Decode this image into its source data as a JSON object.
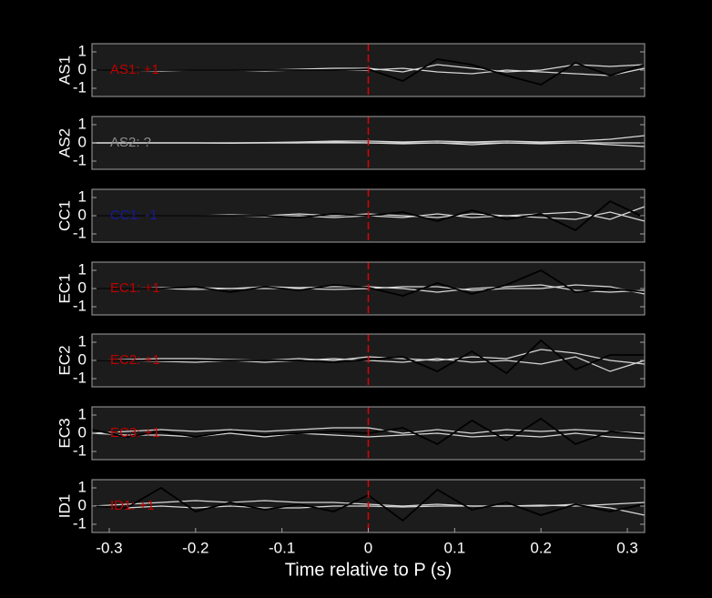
{
  "chart_data": [
    {
      "type": "line",
      "ylabel": "AS1",
      "annotation": {
        "text": "AS1: +1",
        "color": "#c00000"
      },
      "x": [
        -0.32,
        -0.28,
        -0.24,
        -0.2,
        -0.16,
        -0.12,
        -0.08,
        -0.04,
        0,
        0.04,
        0.08,
        0.12,
        0.16,
        0.2,
        0.24,
        0.28,
        0.32
      ],
      "series": [
        {
          "color": "#d8d8d8",
          "values": [
            0,
            0,
            0.02,
            0,
            0,
            0,
            0.05,
            0.1,
            0.1,
            -0.1,
            0.3,
            0.1,
            -0.1,
            0,
            0.3,
            0.2,
            0.3
          ]
        },
        {
          "color": "#d8d8d8",
          "values": [
            0,
            0,
            -0.05,
            0,
            0,
            -0.05,
            0,
            0,
            0,
            0.1,
            -0.1,
            -0.2,
            0,
            -0.1,
            -0.2,
            -0.3,
            0.1
          ]
        },
        {
          "color": "#000000",
          "values": [
            0,
            0,
            0,
            0,
            0,
            0,
            0,
            0,
            0.05,
            -0.6,
            0.6,
            0.3,
            -0.3,
            -0.8,
            0.4,
            -0.3,
            0.3
          ]
        }
      ],
      "xlim": [
        -0.32,
        0.32
      ],
      "ylim": [
        -1.45,
        1.45
      ],
      "yticks": [
        -1,
        0,
        1
      ],
      "vline": {
        "x": 0,
        "color": "#e00000"
      }
    },
    {
      "type": "line",
      "ylabel": "AS2",
      "annotation": {
        "text": "AS2: ?",
        "color": "#8c8c8c"
      },
      "x": [
        -0.32,
        -0.28,
        -0.24,
        -0.2,
        -0.16,
        -0.12,
        -0.08,
        -0.04,
        0,
        0.04,
        0.08,
        0.12,
        0.16,
        0.2,
        0.24,
        0.28,
        0.32
      ],
      "series": [
        {
          "color": "#d8d8d8",
          "values": [
            0,
            0,
            0,
            0,
            0,
            0.02,
            0.05,
            0.1,
            0.1,
            0.05,
            0.1,
            0.05,
            0.1,
            0.05,
            0.1,
            0.2,
            0.4
          ]
        },
        {
          "color": "#d8d8d8",
          "values": [
            0,
            0,
            0,
            0,
            -0.02,
            0,
            0,
            0.05,
            0,
            -0.05,
            0,
            -0.1,
            0,
            -0.05,
            0,
            -0.1,
            -0.2
          ]
        },
        {
          "color": "#d8d8d8",
          "values": [
            0,
            0,
            0,
            0,
            0,
            0,
            0,
            0,
            0,
            0,
            0,
            0,
            0,
            0,
            0,
            0,
            0
          ]
        }
      ],
      "xlim": [
        -0.32,
        0.32
      ],
      "ylim": [
        -1.45,
        1.45
      ],
      "yticks": [
        -1,
        0,
        1
      ],
      "vline": {
        "x": 0,
        "color": "#e00000"
      }
    },
    {
      "type": "line",
      "ylabel": "CC1",
      "annotation": {
        "text": "CC1: -1",
        "color": "#1818a0"
      },
      "x": [
        -0.32,
        -0.28,
        -0.24,
        -0.2,
        -0.16,
        -0.12,
        -0.08,
        -0.04,
        0,
        0.04,
        0.08,
        0.12,
        0.16,
        0.2,
        0.24,
        0.28,
        0.32
      ],
      "series": [
        {
          "color": "#d8d8d8",
          "values": [
            0,
            0,
            0,
            0,
            0.05,
            0,
            0.1,
            0,
            0.1,
            0,
            -0.1,
            0.1,
            0,
            0.1,
            0.2,
            -0.2,
            0.5
          ]
        },
        {
          "color": "#d8d8d8",
          "values": [
            0,
            0,
            0,
            0,
            0,
            -0.05,
            0,
            -0.1,
            0,
            -0.1,
            0.1,
            -0.1,
            0,
            -0.1,
            -0.2,
            0.2,
            -0.3
          ]
        },
        {
          "color": "#000000",
          "values": [
            0,
            0,
            0,
            0,
            0,
            0,
            -0.1,
            0.1,
            0,
            0.2,
            -0.3,
            0.3,
            -0.2,
            0.1,
            -0.8,
            0.8,
            -0.1
          ]
        }
      ],
      "xlim": [
        -0.32,
        0.32
      ],
      "ylim": [
        -1.45,
        1.45
      ],
      "yticks": [
        -1,
        0,
        1
      ],
      "vline": {
        "x": 0,
        "color": "#e00000"
      }
    },
    {
      "type": "line",
      "ylabel": "EC1",
      "annotation": {
        "text": "EC1: +1",
        "color": "#c00000"
      },
      "x": [
        -0.32,
        -0.28,
        -0.24,
        -0.2,
        -0.16,
        -0.12,
        -0.08,
        -0.04,
        0,
        0.04,
        0.08,
        0.12,
        0.16,
        0.2,
        0.24,
        0.28,
        0.32
      ],
      "series": [
        {
          "color": "#d8d8d8",
          "values": [
            0,
            0,
            0.05,
            0.05,
            0,
            0.1,
            0.05,
            0.1,
            0.1,
            0,
            -0.2,
            0,
            0.1,
            0.2,
            -0.1,
            -0.2,
            -0.1
          ]
        },
        {
          "color": "#d8d8d8",
          "values": [
            0,
            0,
            0,
            -0.05,
            0,
            0,
            0,
            -0.05,
            0,
            0.1,
            0.1,
            -0.1,
            0,
            0,
            0.2,
            0.1,
            -0.3
          ]
        },
        {
          "color": "#000000",
          "values": [
            0,
            0,
            0,
            0.1,
            -0.2,
            0.1,
            -0.1,
            0.2,
            0.05,
            -0.4,
            0.3,
            -0.3,
            0.2,
            1.0,
            -0.2,
            0,
            -0.2
          ]
        }
      ],
      "xlim": [
        -0.32,
        0.32
      ],
      "ylim": [
        -1.45,
        1.45
      ],
      "yticks": [
        -1,
        0,
        1
      ],
      "vline": {
        "x": 0,
        "color": "#e00000"
      }
    },
    {
      "type": "line",
      "ylabel": "EC2",
      "annotation": {
        "text": "EC2: +1",
        "color": "#c00000"
      },
      "x": [
        -0.32,
        -0.28,
        -0.24,
        -0.2,
        -0.16,
        -0.12,
        -0.08,
        -0.04,
        0,
        0.04,
        0.08,
        0.12,
        0.16,
        0.2,
        0.24,
        0.28,
        0.32
      ],
      "series": [
        {
          "color": "#d8d8d8",
          "values": [
            0,
            0.05,
            0.1,
            0.1,
            0.05,
            0,
            0.1,
            0,
            0.2,
            0.1,
            0,
            0.2,
            0.1,
            0.6,
            0.4,
            0,
            -0.2
          ]
        },
        {
          "color": "#d8d8d8",
          "values": [
            0,
            0,
            -0.05,
            -0.1,
            0,
            -0.1,
            0,
            0.1,
            0,
            -0.1,
            0.1,
            -0.1,
            0,
            -0.2,
            0.2,
            -0.6,
            0
          ]
        },
        {
          "color": "#000000",
          "values": [
            0,
            0,
            0,
            0,
            0,
            0,
            0,
            -0.1,
            0.05,
            0.2,
            -0.6,
            0.5,
            -0.7,
            1.1,
            -0.5,
            0.3,
            0.3
          ]
        }
      ],
      "xlim": [
        -0.32,
        0.32
      ],
      "ylim": [
        -1.45,
        1.45
      ],
      "yticks": [
        -1,
        0,
        1
      ],
      "vline": {
        "x": 0,
        "color": "#e00000"
      }
    },
    {
      "type": "line",
      "ylabel": "EC3",
      "annotation": {
        "text": "EC3: +1",
        "color": "#c00000"
      },
      "x": [
        -0.32,
        -0.28,
        -0.24,
        -0.2,
        -0.16,
        -0.12,
        -0.08,
        -0.04,
        0,
        0.04,
        0.08,
        0.12,
        0.16,
        0.2,
        0.24,
        0.28,
        0.32
      ],
      "series": [
        {
          "color": "#d8d8d8",
          "values": [
            0,
            0.1,
            0.2,
            0.1,
            0.2,
            0.1,
            0.2,
            0.3,
            0.3,
            0,
            0.2,
            0,
            0.2,
            0.1,
            0.2,
            0.1,
            0
          ]
        },
        {
          "color": "#d8d8d8",
          "values": [
            0,
            -0.1,
            -0.1,
            -0.2,
            0,
            -0.2,
            0,
            -0.1,
            -0.2,
            -0.1,
            0,
            -0.2,
            -0.1,
            -0.2,
            0,
            -0.2,
            -0.3
          ]
        },
        {
          "color": "#000000",
          "values": [
            0.2,
            -0.2,
            0.1,
            -0.2,
            0.1,
            -0.1,
            0,
            0.1,
            0,
            0.3,
            -0.6,
            0.7,
            -0.4,
            0.8,
            -0.6,
            0.1,
            -0.1
          ]
        }
      ],
      "xlim": [
        -0.32,
        0.32
      ],
      "ylim": [
        -1.45,
        1.45
      ],
      "yticks": [
        -1,
        0,
        1
      ],
      "vline": {
        "x": 0,
        "color": "#e00000"
      }
    },
    {
      "type": "line",
      "ylabel": "ID1",
      "annotation": {
        "text": "ID1: +1",
        "color": "#c00000"
      },
      "x": [
        -0.32,
        -0.28,
        -0.24,
        -0.2,
        -0.16,
        -0.12,
        -0.08,
        -0.04,
        0,
        0.04,
        0.08,
        0.12,
        0.16,
        0.2,
        0.24,
        0.28,
        0.32
      ],
      "series": [
        {
          "color": "#d8d8d8",
          "values": [
            0,
            0.1,
            0.2,
            0.3,
            0.2,
            0.3,
            0.2,
            0.2,
            0.1,
            0,
            0.1,
            0,
            0,
            0.05,
            0,
            0.1,
            0.2
          ]
        },
        {
          "color": "#d8d8d8",
          "values": [
            0,
            -0.1,
            0,
            -0.1,
            0,
            -0.1,
            -0.1,
            0,
            0,
            -0.05,
            0,
            0,
            0,
            0,
            0.1,
            -0.1,
            -0.5
          ]
        },
        {
          "color": "#000000",
          "values": [
            0,
            -0.1,
            1.0,
            -0.3,
            0.2,
            -0.2,
            0.1,
            -0.3,
            0.6,
            -0.8,
            0.9,
            -0.2,
            0.2,
            -0.5,
            0.1,
            -0.3,
            0.1
          ]
        }
      ],
      "xlim": [
        -0.32,
        0.32
      ],
      "ylim": [
        -1.45,
        1.45
      ],
      "yticks": [
        -1,
        0,
        1
      ],
      "vline": {
        "x": 0,
        "color": "#e00000"
      },
      "xticks": [
        -0.3,
        -0.2,
        -0.1,
        0,
        0.1,
        0.2,
        0.3
      ],
      "xlabel": "Time relative to P (s)"
    }
  ]
}
